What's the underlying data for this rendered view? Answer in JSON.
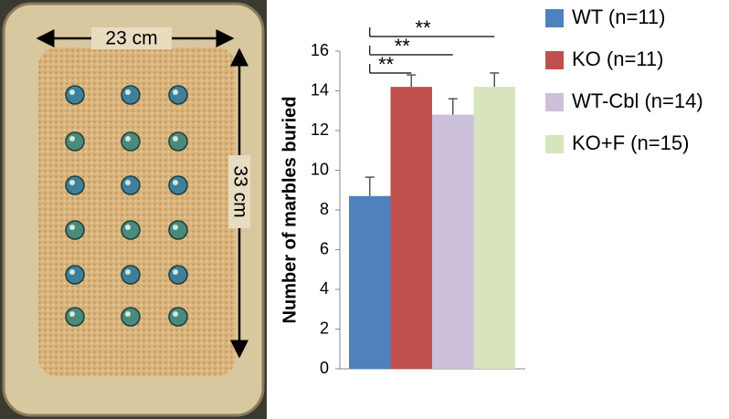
{
  "photo": {
    "width_label": "23 cm",
    "height_label": "33 cm"
  },
  "chart_data": {
    "type": "bar",
    "y_label": "Number of marbles buried",
    "categories": [
      null
    ],
    "series": [
      {
        "name": "WT (n=11)",
        "color": "#4f81bd",
        "values": [
          8.7
        ],
        "errors": [
          0.95
        ]
      },
      {
        "name": "KO (n=11)",
        "color": "#c0504d",
        "values": [
          14.2
        ],
        "errors": [
          0.6
        ]
      },
      {
        "name": "WT-Cbl (n=14)",
        "color": "#ccc0da",
        "values": [
          12.8
        ],
        "errors": [
          0.8
        ]
      },
      {
        "name": "KO+F (n=15)",
        "color": "#d7e4bd",
        "values": [
          14.2
        ],
        "errors": [
          0.7
        ]
      }
    ],
    "ylim": [
      0,
      16
    ],
    "yticks": [
      0,
      2,
      4,
      6,
      8,
      10,
      12,
      14,
      16
    ],
    "annotations": [
      {
        "text": "**",
        "series": [
          0,
          1
        ]
      },
      {
        "text": "**",
        "series": [
          0,
          2
        ]
      },
      {
        "text": "**",
        "series": [
          0,
          3
        ]
      }
    ],
    "legend": "right"
  }
}
